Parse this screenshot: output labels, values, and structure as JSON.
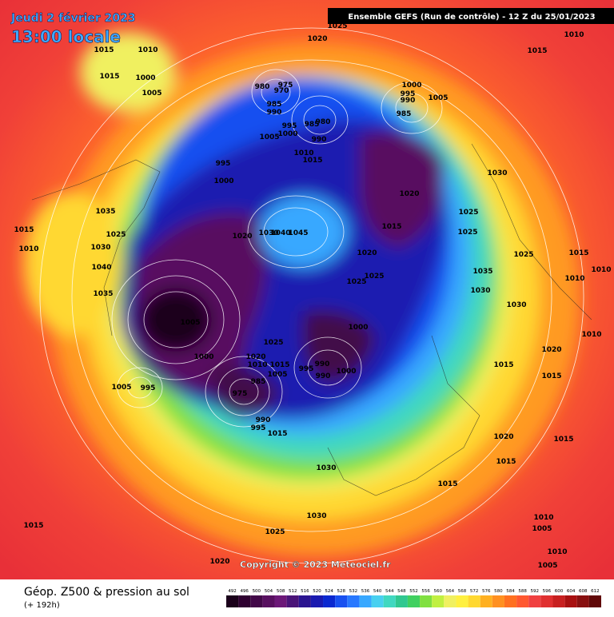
{
  "header": {
    "date": "Jeudi 2 février 2023",
    "local_time": "13:00 locale",
    "run": "Ensemble GEFS  (Run de contrôle)  -  12 Z du 25/01/2023"
  },
  "copyright": "Copyright © 2023 Meteociel.fr",
  "footer": {
    "title": "Géop. Z500 & pression au sol",
    "lead_time": "(+ 192h)"
  },
  "colorbar": {
    "ticks": [
      492,
      496,
      500,
      504,
      508,
      512,
      516,
      520,
      524,
      528,
      532,
      536,
      540,
      544,
      548,
      552,
      556,
      560,
      564,
      568,
      572,
      576,
      580,
      584,
      588,
      592,
      596,
      600,
      604,
      608,
      612
    ],
    "colors": [
      "#1a001a",
      "#2e0030",
      "#420848",
      "#581060",
      "#6c1878",
      "#4a1478",
      "#2a1490",
      "#1a1ab0",
      "#0a28d0",
      "#1850f0",
      "#2878ff",
      "#38a8ff",
      "#48d0f0",
      "#40d8c0",
      "#30c890",
      "#40d060",
      "#80e040",
      "#c0f040",
      "#f0f060",
      "#fff040",
      "#ffd830",
      "#ffb020",
      "#ff9020",
      "#ff7020",
      "#ff5830",
      "#f04040",
      "#e03030",
      "#c82020",
      "#a81010",
      "#881010",
      "#600808"
    ]
  },
  "isobar_labels": [
    1015,
    1010,
    1015,
    1000,
    1005,
    1020,
    1025,
    1010,
    1015,
    980,
    975,
    970,
    985,
    990,
    980,
    985,
    995,
    1000,
    1005,
    990,
    1010,
    1015,
    1000,
    995,
    990,
    1005,
    985,
    995,
    1000,
    1030,
    1020,
    1035,
    1025,
    1025,
    1025,
    1015,
    1015,
    1020,
    1030,
    1040,
    1045,
    1030,
    1010,
    1020,
    1025,
    1015,
    1010,
    1040,
    1025,
    1025,
    1035,
    1010,
    1035,
    1030,
    1030,
    1005,
    1000,
    1010,
    1025,
    1000,
    1020,
    1020,
    990,
    995,
    990,
    1000,
    1015,
    1010,
    1005,
    1015,
    1015,
    1005,
    995,
    975,
    985,
    990,
    995,
    1015,
    1020,
    1015,
    1030,
    1015,
    1015,
    1030,
    1025,
    1015,
    1010,
    1005,
    1010,
    1005,
    1020
  ]
}
